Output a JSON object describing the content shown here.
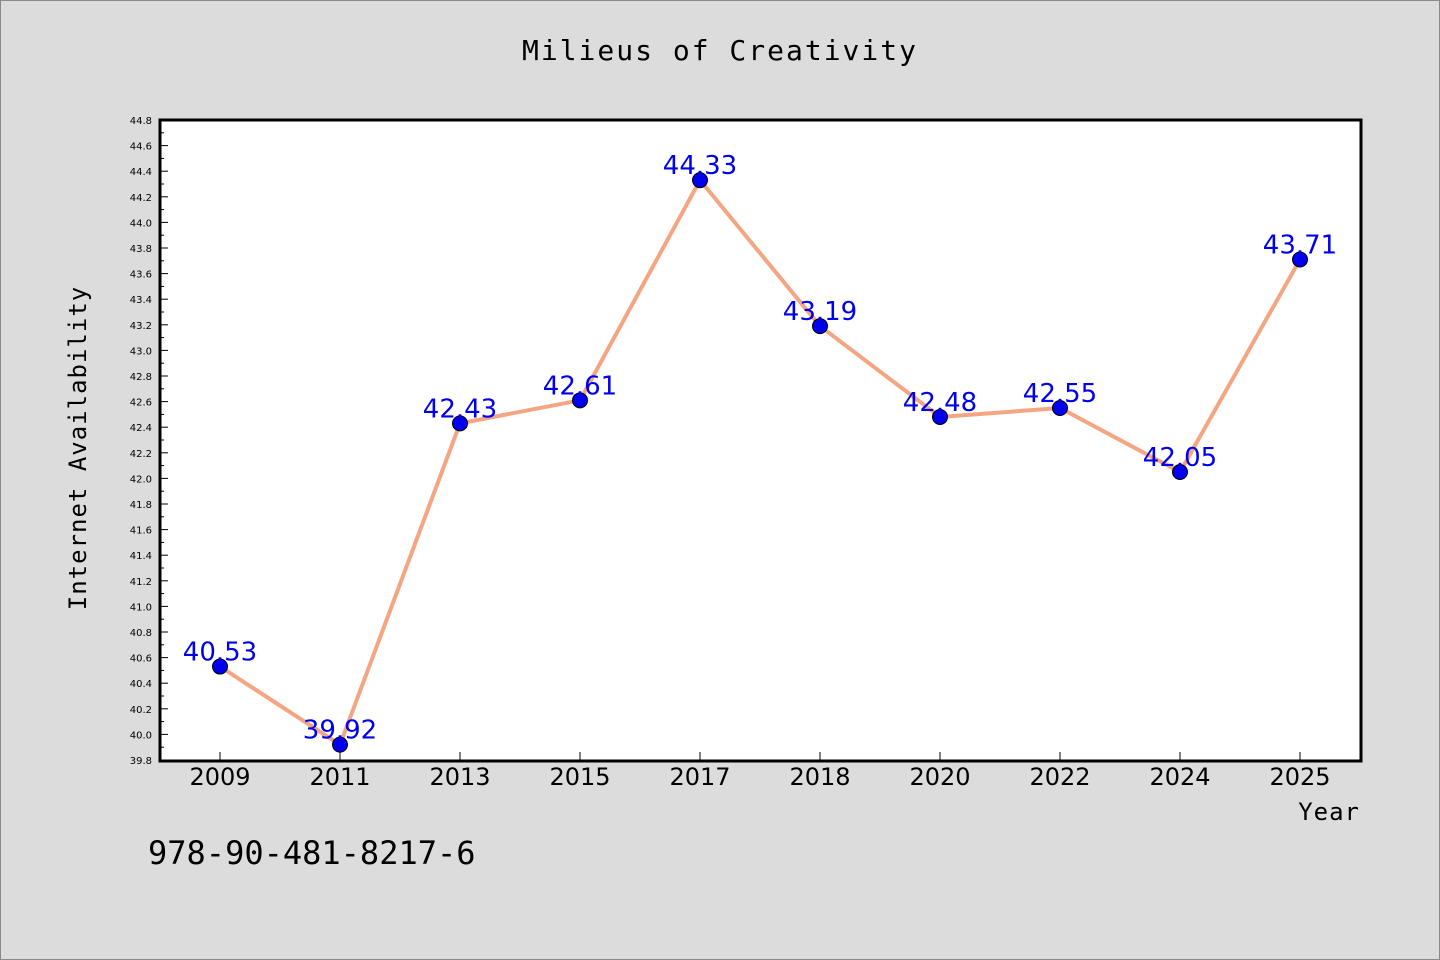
{
  "title": "Milieus of Creativity",
  "footer_text": "978-90-481-8217-6",
  "colors": {
    "background": "#dcdcdc",
    "plot_background": "#ffffff",
    "line": "#f4a582",
    "marker": "#0000ee",
    "data_label": "#0000ee"
  },
  "chart_data": {
    "type": "line",
    "title": "Milieus of Creativity",
    "xlabel": "Year",
    "ylabel": "Internet Availability",
    "categories": [
      "2009",
      "2011",
      "2013",
      "2015",
      "2017",
      "2018",
      "2020",
      "2022",
      "2024",
      "2025"
    ],
    "values": [
      40.53,
      39.92,
      42.43,
      42.61,
      44.33,
      43.19,
      42.48,
      42.55,
      42.05,
      43.71
    ],
    "data_labels": [
      "40.53",
      "39.92",
      "42.43",
      "42.61",
      "44.33",
      "43.19",
      "42.48",
      "42.55",
      "42.05",
      "43.71"
    ],
    "ylim": [
      39.8,
      44.8
    ],
    "y_ticks": [
      "39.8",
      "40.0",
      "40.2",
      "40.4",
      "40.6",
      "40.8",
      "41.0",
      "41.2",
      "41.4",
      "41.6",
      "41.8",
      "42.0",
      "42.2",
      "42.4",
      "42.6",
      "42.8",
      "43.0",
      "43.2",
      "43.4",
      "43.6",
      "43.8",
      "44.0",
      "44.2",
      "44.4",
      "44.6",
      "44.8"
    ],
    "grid": false,
    "legend": "none"
  }
}
